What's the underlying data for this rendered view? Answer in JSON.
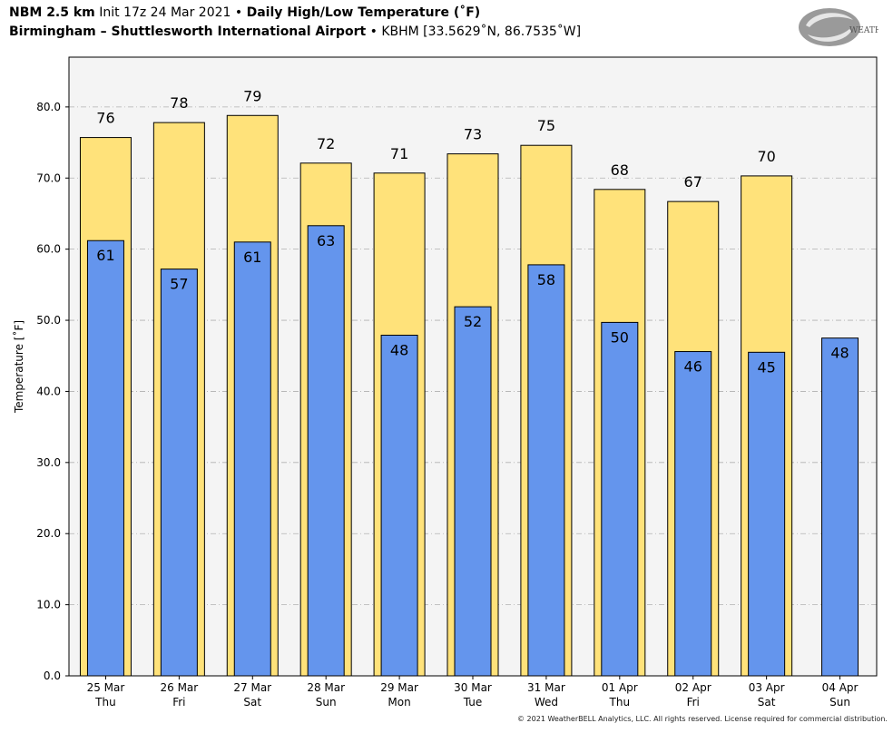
{
  "header": {
    "model": "NBM 2.5 km",
    "init": "Init 17z 24 Mar 2021",
    "bullet": "•",
    "product": "Daily High/Low Temperature (˚F)",
    "station": "Birmingham – Shuttlesworth International Airport",
    "station_code": "KBHM [33.5629˚N, 86.7535˚W]"
  },
  "logo": {
    "text": "WEATHERBELL",
    "icon": "weatherbell-swirl-logo"
  },
  "footer": {
    "copyright": "© 2021 WeatherBELL Analytics, LLC. All rights reserved. License required for commercial distribution."
  },
  "colors": {
    "high": "#FFE27A",
    "low": "#6495ED",
    "plot_bg": "#F4F4F4",
    "grid": "#B0B0B0"
  },
  "chart_data": {
    "type": "bar",
    "ylabel": "Temperature [˚F]",
    "ylim": [
      0,
      87
    ],
    "yticks": [
      "0.0",
      "10.0",
      "20.0",
      "30.0",
      "40.0",
      "50.0",
      "60.0",
      "70.0",
      "80.0"
    ],
    "grid": true,
    "categories": [
      [
        "25 Mar",
        "Thu"
      ],
      [
        "26 Mar",
        "Fri"
      ],
      [
        "27 Mar",
        "Sat"
      ],
      [
        "28 Mar",
        "Sun"
      ],
      [
        "29 Mar",
        "Mon"
      ],
      [
        "30 Mar",
        "Tue"
      ],
      [
        "31 Mar",
        "Wed"
      ],
      [
        "01 Apr",
        "Thu"
      ],
      [
        "02 Apr",
        "Fri"
      ],
      [
        "03 Apr",
        "Sat"
      ],
      [
        "04 Apr",
        "Sun"
      ]
    ],
    "series": [
      {
        "values": [
          75.7,
          77.8,
          78.8,
          72.1,
          70.7,
          73.4,
          74.6,
          68.4,
          66.7,
          70.3,
          null
        ],
        "labels": [
          "76",
          "78",
          "79",
          "72",
          "71",
          "73",
          "75",
          "68",
          "67",
          "70",
          ""
        ]
      },
      {
        "values": [
          61.2,
          57.2,
          61.0,
          63.3,
          47.9,
          51.9,
          57.8,
          49.7,
          45.6,
          45.5,
          47.5
        ],
        "labels": [
          "61",
          "57",
          "61",
          "63",
          "48",
          "52",
          "58",
          "50",
          "46",
          "45",
          "48"
        ]
      }
    ]
  }
}
